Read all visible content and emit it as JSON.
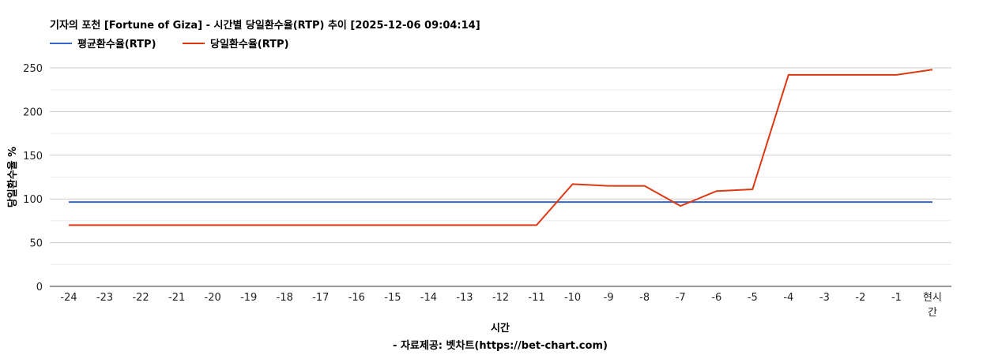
{
  "chart_data": {
    "type": "line",
    "title": "기자의 포천 [Fortune of Giza] - 시간별 당일환수율(RTP) 추이 [2025-12-06 09:04:14]",
    "xlabel": "시간",
    "ylabel": "당일환수율 %",
    "credit": "- 자료제공: 벳차트(https://bet-chart.com)",
    "categories": [
      "-24",
      "-23",
      "-22",
      "-21",
      "-20",
      "-19",
      "-18",
      "-17",
      "-16",
      "-15",
      "-14",
      "-13",
      "-12",
      "-11",
      "-10",
      "-9",
      "-8",
      "-7",
      "-6",
      "-5",
      "-4",
      "-3",
      "-2",
      "-1",
      "현시간"
    ],
    "ylim": [
      0,
      250
    ],
    "yticks": [
      0,
      50,
      100,
      150,
      200,
      250
    ],
    "grid": true,
    "legend_position": "top-left",
    "series": [
      {
        "name": "평균환수율(RTP)",
        "color": "#3366cc",
        "values": [
          96.5,
          96.5,
          96.5,
          96.5,
          96.5,
          96.5,
          96.5,
          96.5,
          96.5,
          96.5,
          96.5,
          96.5,
          96.5,
          96.5,
          96.5,
          96.5,
          96.5,
          96.5,
          96.5,
          96.5,
          96.5,
          96.5,
          96.5,
          96.5,
          96.5
        ]
      },
      {
        "name": "당일환수율(RTP)",
        "color": "#dc3912",
        "values": [
          70,
          70,
          70,
          70,
          70,
          70,
          70,
          70,
          70,
          70,
          70,
          70,
          70,
          70,
          117,
          115,
          115,
          92,
          109,
          111,
          242,
          242,
          242,
          242,
          248
        ]
      }
    ]
  }
}
